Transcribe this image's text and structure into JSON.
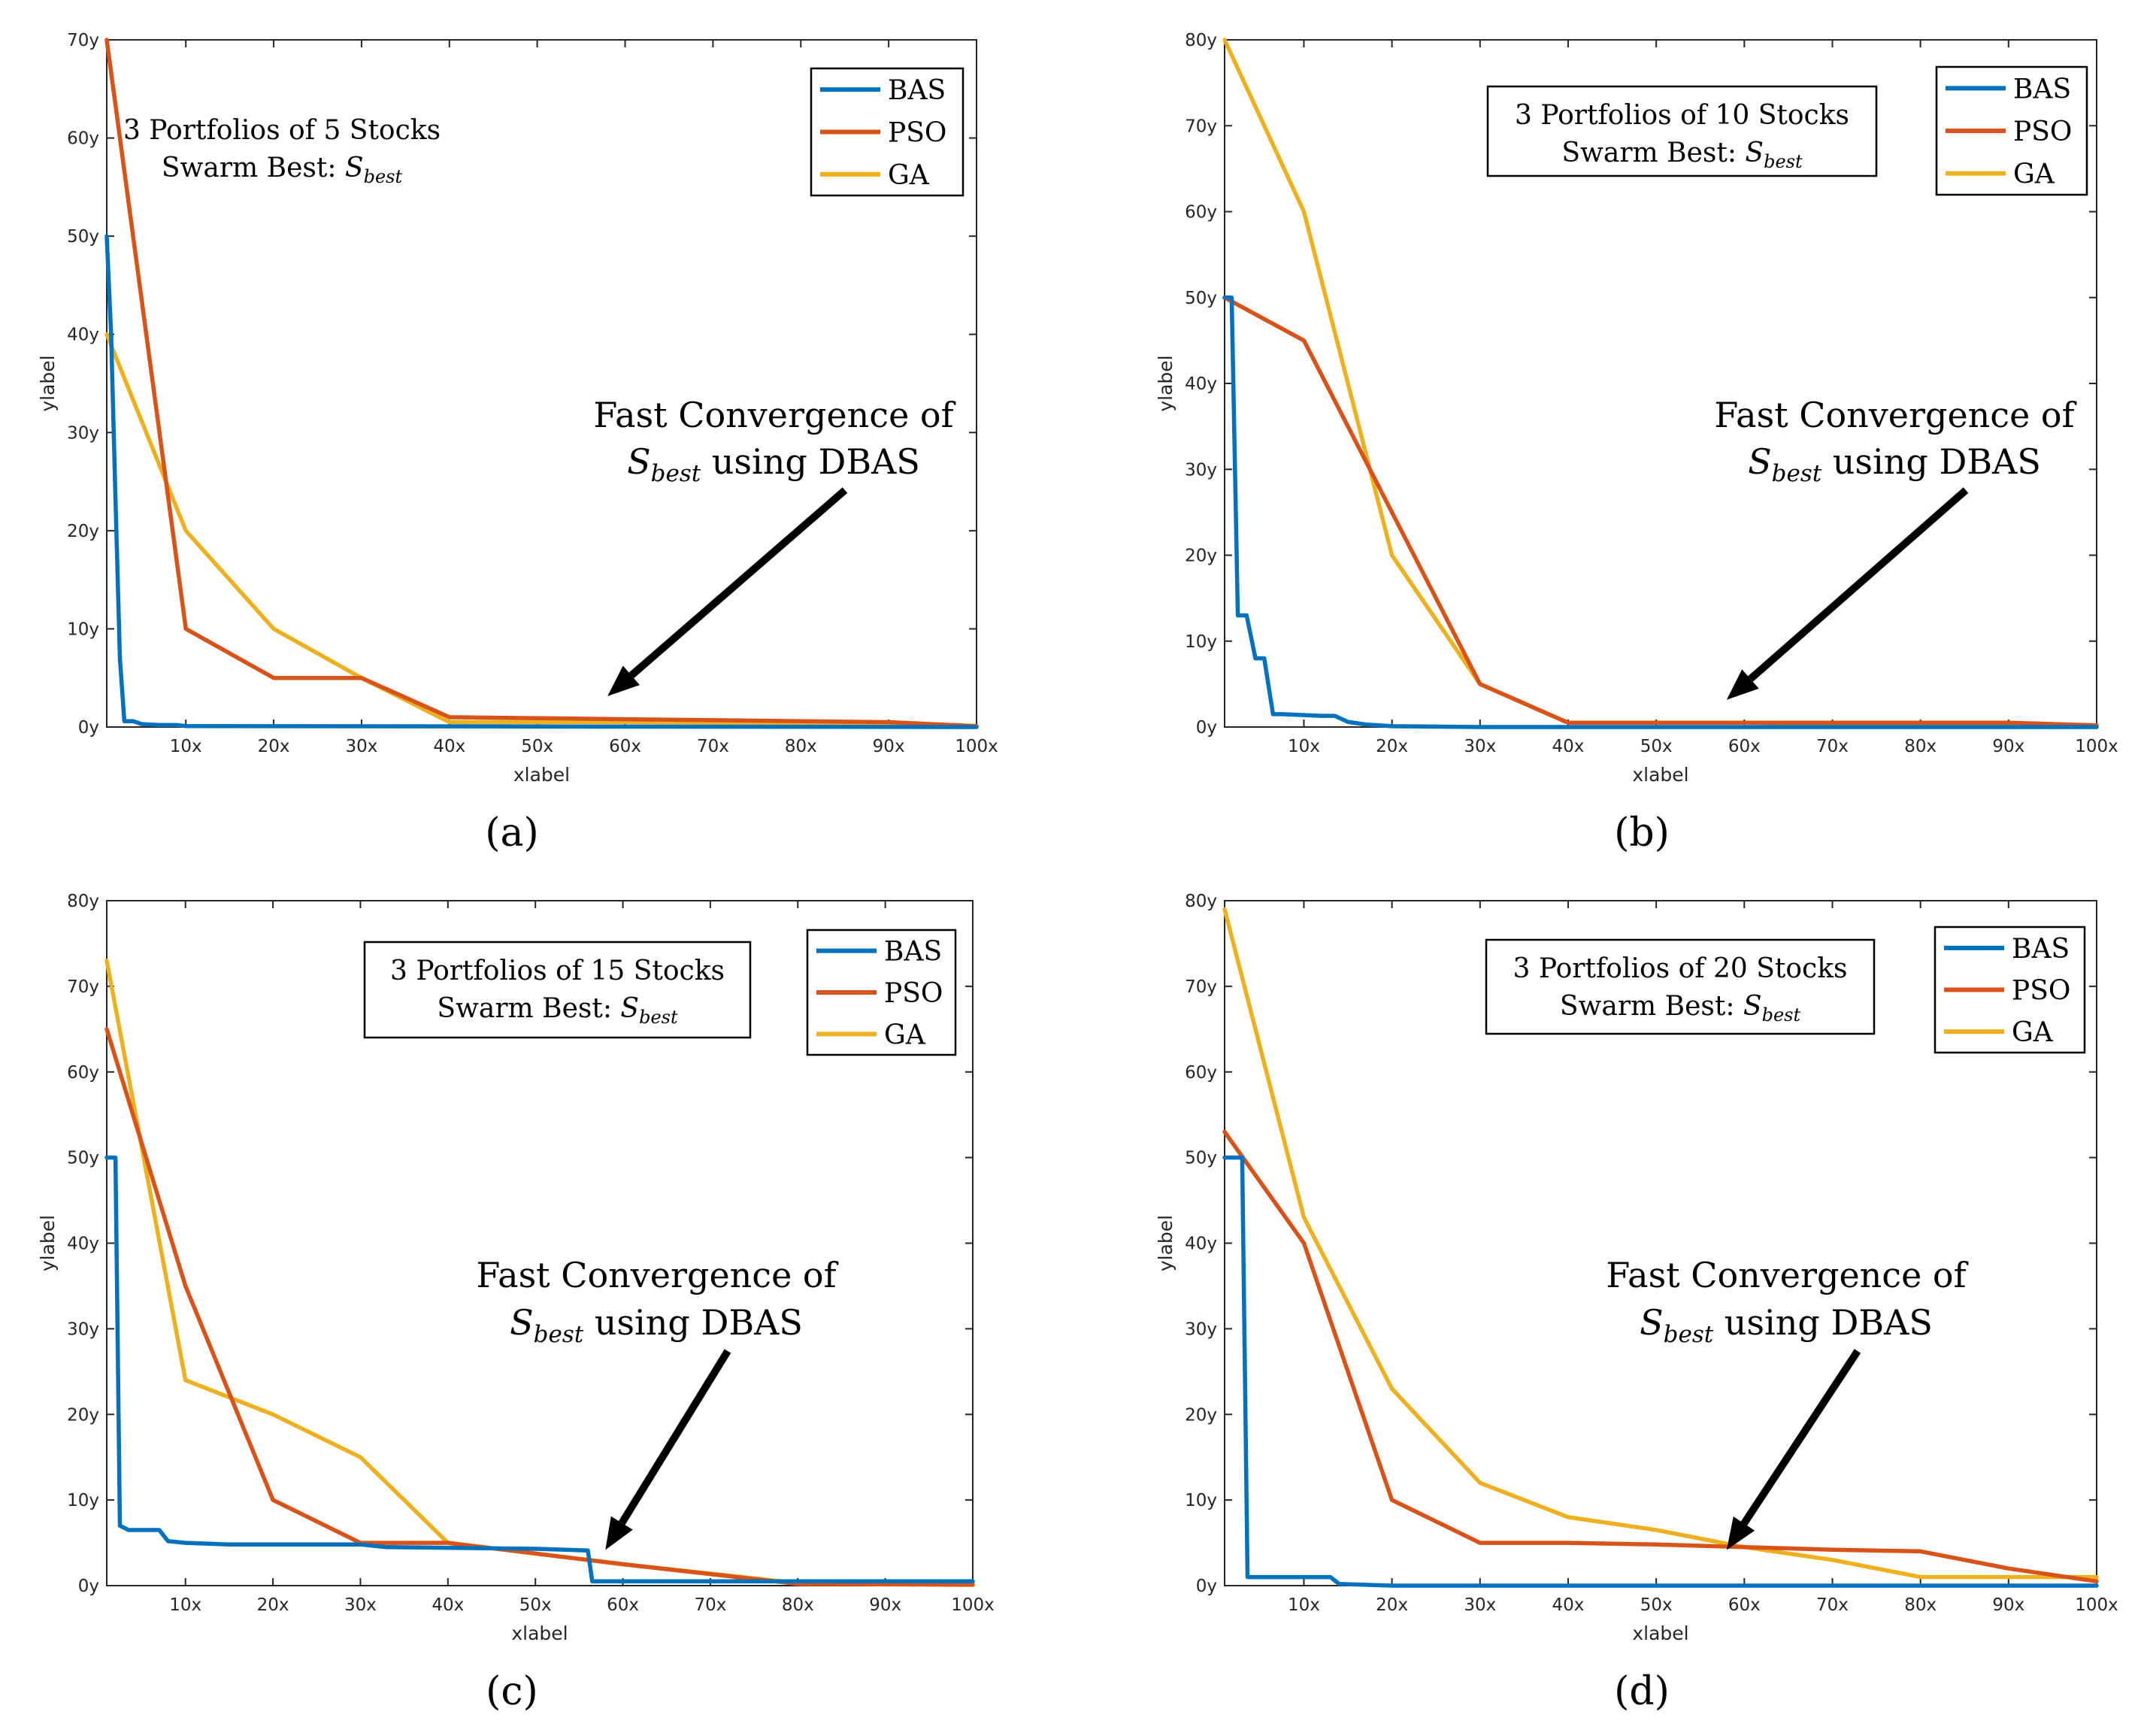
{
  "colors": {
    "BAS": "#0072bd",
    "PSO": "#d95319",
    "GA": "#edb120"
  },
  "chart_data": [
    {
      "type": "line",
      "panel": "(a)",
      "title": "3 Portfolios of 5 Stocks",
      "subtitle": "Swarm Best:",
      "subtitle_symbol": "S",
      "subtitle_subscript": "best",
      "annotation_line1": "Fast Convergence of",
      "annotation_symbol": "S",
      "annotation_subscript": "best",
      "annotation_rest": " using DBAS",
      "annotation_target": [
        58,
        3
      ],
      "xlabel": "xlabel",
      "ylabel": "ylabel",
      "xlim": [
        1,
        100
      ],
      "ylim": [
        0,
        70
      ],
      "xticks": [
        10,
        20,
        30,
        40,
        50,
        60,
        70,
        80,
        90,
        100
      ],
      "xticklabels": [
        "10x",
        "20x",
        "30x",
        "40x",
        "50x",
        "60x",
        "70x",
        "80x",
        "90x",
        "100x"
      ],
      "yticks": [
        0,
        10,
        20,
        30,
        40,
        50,
        60,
        70
      ],
      "yticklabels": [
        "0y",
        "10y",
        "20y",
        "30y",
        "40y",
        "50y",
        "60y",
        "70y"
      ],
      "legend": "top-right",
      "series": [
        {
          "name": "BAS",
          "x": [
            1,
            1.5,
            2,
            2.5,
            3,
            4,
            5,
            7,
            9,
            10,
            100
          ],
          "y": [
            50,
            40,
            23,
            7,
            0.6,
            0.6,
            0.3,
            0.2,
            0.2,
            0.1,
            0
          ]
        },
        {
          "name": "PSO",
          "x": [
            1,
            10,
            20,
            30,
            40,
            50,
            60,
            70,
            80,
            90,
            100
          ],
          "y": [
            70,
            10,
            5,
            5,
            1,
            0.9,
            0.8,
            0.7,
            0.6,
            0.5,
            0.1
          ]
        },
        {
          "name": "GA",
          "x": [
            1,
            10,
            20,
            30,
            40,
            60,
            80,
            100
          ],
          "y": [
            40,
            20,
            10,
            5,
            0.5,
            0.5,
            0.4,
            0.1
          ]
        }
      ]
    },
    {
      "type": "line",
      "panel": "(b)",
      "title": "3 Portfolios of 10 Stocks",
      "subtitle": "Swarm Best:",
      "subtitle_symbol": "S",
      "subtitle_subscript": "best",
      "annotation_line1": "Fast Convergence of",
      "annotation_symbol": "S",
      "annotation_subscript": "best",
      "annotation_rest": " using DBAS",
      "annotation_target": [
        58,
        3
      ],
      "xlabel": "xlabel",
      "ylabel": "ylabel",
      "xlim": [
        1,
        100
      ],
      "ylim": [
        0,
        80
      ],
      "xticks": [
        10,
        20,
        30,
        40,
        50,
        60,
        70,
        80,
        90,
        100
      ],
      "xticklabels": [
        "10x",
        "20x",
        "30x",
        "40x",
        "50x",
        "60x",
        "70x",
        "80x",
        "90x",
        "100x"
      ],
      "yticks": [
        0,
        10,
        20,
        30,
        40,
        50,
        60,
        70,
        80
      ],
      "yticklabels": [
        "0y",
        "10y",
        "20y",
        "30y",
        "40y",
        "50y",
        "60y",
        "70y",
        "80y"
      ],
      "legend": "top-right",
      "series": [
        {
          "name": "BAS",
          "x": [
            1,
            1.8,
            2.5,
            3.5,
            4.5,
            5.5,
            6.5,
            7.5,
            12,
            13.5,
            15,
            17,
            20,
            30,
            100
          ],
          "y": [
            50,
            50,
            13,
            13,
            8,
            8,
            1.5,
            1.5,
            1.3,
            1.3,
            0.6,
            0.3,
            0.1,
            0,
            0
          ]
        },
        {
          "name": "PSO",
          "x": [
            1,
            10,
            30,
            40,
            60,
            80,
            90,
            100
          ],
          "y": [
            50,
            45,
            5,
            0.5,
            0.5,
            0.5,
            0.5,
            0.2
          ]
        },
        {
          "name": "GA",
          "x": [
            1,
            10,
            20,
            30,
            40,
            60,
            80,
            100
          ],
          "y": [
            80,
            60,
            20,
            5,
            0.5,
            0.5,
            0.3,
            0.2
          ]
        }
      ]
    },
    {
      "type": "line",
      "panel": "(c)",
      "title": "3 Portfolios of 15 Stocks",
      "subtitle": "Swarm Best:",
      "subtitle_symbol": "S",
      "subtitle_subscript": "best",
      "annotation_line1": "Fast Convergence of",
      "annotation_symbol": "S",
      "annotation_subscript": "best",
      "annotation_rest": " using DBAS",
      "annotation_target": [
        58,
        4
      ],
      "xlabel": "xlabel",
      "ylabel": "ylabel",
      "xlim": [
        1,
        100
      ],
      "ylim": [
        0,
        80
      ],
      "xticks": [
        10,
        20,
        30,
        40,
        50,
        60,
        70,
        80,
        90,
        100
      ],
      "xticklabels": [
        "10x",
        "20x",
        "30x",
        "40x",
        "50x",
        "60x",
        "70x",
        "80x",
        "90x",
        "100x"
      ],
      "yticks": [
        0,
        10,
        20,
        30,
        40,
        50,
        60,
        70,
        80
      ],
      "yticklabels": [
        "0y",
        "10y",
        "20y",
        "30y",
        "40y",
        "50y",
        "60y",
        "70y",
        "80y"
      ],
      "legend": "top-right",
      "series": [
        {
          "name": "BAS",
          "x": [
            1,
            2,
            2.5,
            3.5,
            7,
            8,
            10,
            15,
            30,
            33,
            50,
            56,
            56.5,
            100
          ],
          "y": [
            50,
            50,
            7,
            6.5,
            6.5,
            5.2,
            5,
            4.8,
            4.8,
            4.5,
            4.3,
            4.1,
            0.5,
            0.5
          ]
        },
        {
          "name": "PSO",
          "x": [
            1,
            10,
            20,
            30,
            40,
            60,
            80,
            100
          ],
          "y": [
            65,
            35,
            10,
            5,
            5,
            2.5,
            0.2,
            0.1
          ]
        },
        {
          "name": "GA",
          "x": [
            1,
            10,
            20,
            30,
            40,
            60,
            80,
            100
          ],
          "y": [
            73,
            24,
            20,
            15,
            5,
            2.5,
            0.3,
            0.2
          ]
        }
      ]
    },
    {
      "type": "line",
      "panel": "(d)",
      "title": "3 Portfolios of 20 Stocks",
      "subtitle": "Swarm Best:",
      "subtitle_symbol": "S",
      "subtitle_subscript": "best",
      "annotation_line1": "Fast Convergence of",
      "annotation_symbol": "S",
      "annotation_subscript": "best",
      "annotation_rest": " using DBAS",
      "annotation_target": [
        58,
        4
      ],
      "xlabel": "xlabel",
      "ylabel": "ylabel",
      "xlim": [
        1,
        100
      ],
      "ylim": [
        0,
        80
      ],
      "xticks": [
        10,
        20,
        30,
        40,
        50,
        60,
        70,
        80,
        90,
        100
      ],
      "xticklabels": [
        "10x",
        "20x",
        "30x",
        "40x",
        "50x",
        "60x",
        "70x",
        "80x",
        "90x",
        "100x"
      ],
      "yticks": [
        0,
        10,
        20,
        30,
        40,
        50,
        60,
        70,
        80
      ],
      "yticklabels": [
        "0y",
        "10y",
        "20y",
        "30y",
        "40y",
        "50y",
        "60y",
        "70y",
        "80y"
      ],
      "legend": "top-right",
      "series": [
        {
          "name": "BAS",
          "x": [
            1,
            3,
            3.6,
            4.2,
            13,
            14,
            20,
            100
          ],
          "y": [
            50,
            50,
            1,
            1,
            1,
            0.2,
            0,
            0
          ]
        },
        {
          "name": "PSO",
          "x": [
            1,
            10,
            20,
            30,
            40,
            50,
            60,
            70,
            80,
            90,
            100
          ],
          "y": [
            53,
            40,
            10,
            5,
            5,
            4.8,
            4.5,
            4.2,
            4,
            2,
            0.5
          ]
        },
        {
          "name": "GA",
          "x": [
            1,
            10,
            20,
            30,
            40,
            50,
            60,
            70,
            80,
            90,
            100
          ],
          "y": [
            79,
            43,
            23,
            12,
            8,
            6.5,
            4.5,
            3,
            1,
            1,
            1
          ]
        }
      ]
    }
  ]
}
